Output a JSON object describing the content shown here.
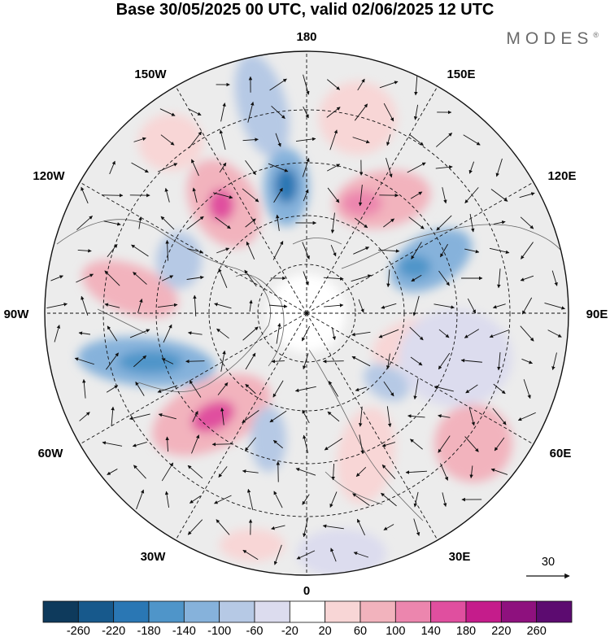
{
  "title": "Base 30/05/2025 00 UTC, valid 02/06/2025 12 UTC",
  "logo": "MODES",
  "logo_mark": "®",
  "longitude_labels": {
    "lon_180": "180",
    "lon_150e": "150E",
    "lon_120e": "120E",
    "lon_90e": "90E",
    "lon_60e": "60E",
    "lon_30e": "30E",
    "lon_0": "0",
    "lon_30w": "30W",
    "lon_60w": "60W",
    "lon_90w": "90W",
    "lon_120w": "120W",
    "lon_150w": "150W"
  },
  "reference_vector_label": "30",
  "colorbar": {
    "ticks": [
      "-260",
      "-220",
      "-180",
      "-140",
      "-100",
      "-60",
      "-20",
      "20",
      "60",
      "100",
      "140",
      "180",
      "220",
      "260"
    ],
    "colors": [
      "#0e3a5c",
      "#17598c",
      "#2a77b4",
      "#4f95c9",
      "#86b2db",
      "#b6c9e5",
      "#dcdcee",
      "#ffffff",
      "#f8d6d6",
      "#f2b3bd",
      "#ec86ae",
      "#e04f9f",
      "#c51c8b",
      "#8e117e",
      "#5c0b70"
    ]
  }
}
